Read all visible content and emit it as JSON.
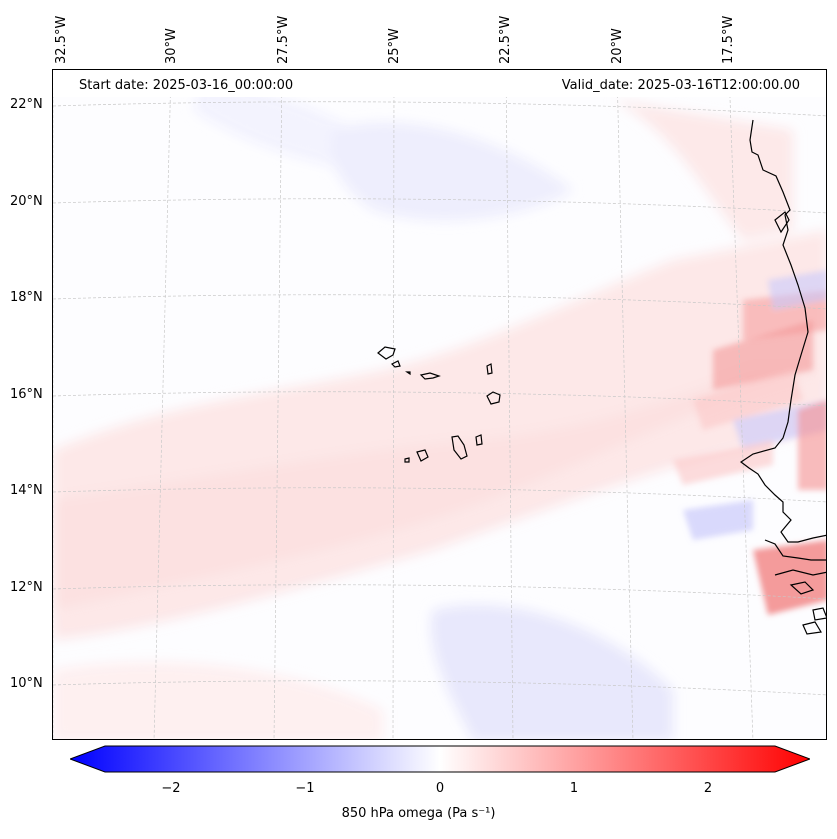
{
  "header": {
    "start_date": "Start date: 2025-03-16_00:00:00",
    "valid_date": "Valid_date: 2025-03-16T12:00:00.00"
  },
  "axes": {
    "lon_labels": [
      "32.5°W",
      "30°W",
      "27.5°W",
      "25°W",
      "22.5°W",
      "20°W",
      "17.5°W"
    ],
    "lat_labels": [
      "22°N",
      "20°N",
      "18°N",
      "16°N",
      "14°N",
      "12°N",
      "10°N"
    ]
  },
  "colorbar": {
    "ticks": [
      "−2",
      "−1",
      "0",
      "1",
      "2"
    ],
    "label": "850 hPa omega (Pa s⁻¹)",
    "min_color": "#0000ff",
    "mid_color": "#ffffff",
    "max_color": "#ff0000",
    "range": [
      -2.5,
      2.5
    ]
  },
  "map": {
    "variable": "850 hPa omega",
    "projection": "conic",
    "gridlines": true,
    "colors": {
      "coastline": "#000000",
      "gridline": "#c8c8c8"
    }
  }
}
